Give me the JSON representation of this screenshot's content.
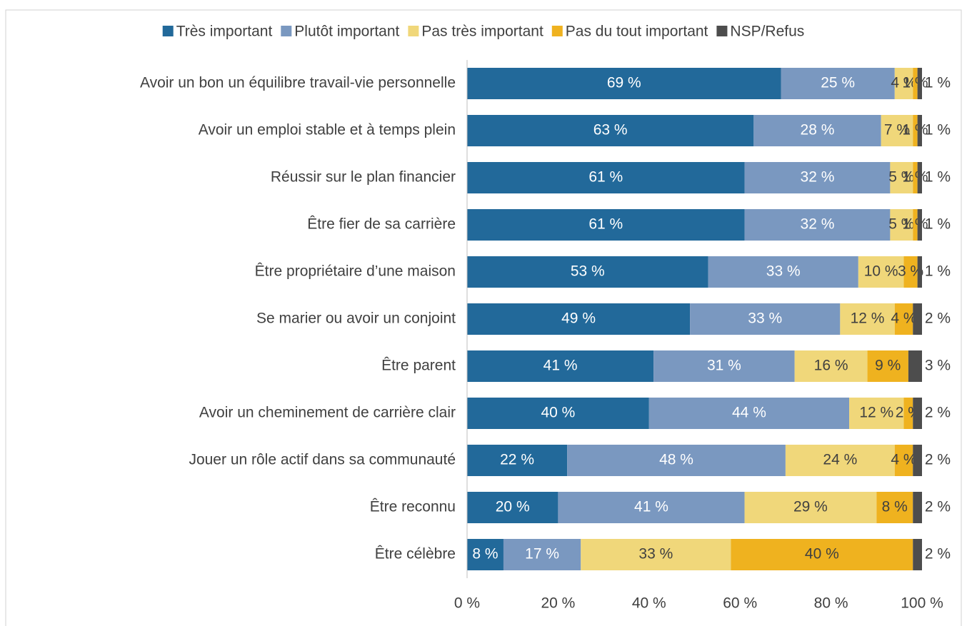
{
  "chart_data": {
    "type": "stacked-bar-horizontal",
    "categories": [
      "Avoir un bon un équilibre travail-vie personnelle",
      "Avoir un emploi stable et à temps plein",
      "Réussir sur le plan financier",
      "Être fier de sa carrière",
      "Être propriétaire d’une maison",
      "Se marier ou avoir un conjoint ",
      "Être parent ",
      "Avoir un cheminement de carrière clair",
      "Jouer un rôle actif dans sa communauté",
      "Être reconnu",
      "Être célèbre"
    ],
    "series": [
      {
        "name": "Très important",
        "color": "#22699a",
        "values": [
          69,
          63,
          61,
          61,
          53,
          49,
          41,
          40,
          22,
          20,
          8
        ],
        "value_labels": [
          "69 %",
          "63 %",
          "61 %",
          "61 %",
          "53 %",
          "49 %",
          "41 %",
          "40 %",
          "22 %",
          "20 %",
          "8 %"
        ]
      },
      {
        "name": "Plutôt important",
        "color": "#7a98c0",
        "values": [
          25,
          28,
          32,
          32,
          33,
          33,
          31,
          44,
          48,
          41,
          17
        ],
        "value_labels": [
          "25 %",
          "28 %",
          "32 %",
          "32 %",
          "33 %",
          "33 %",
          "31 %",
          "44 %",
          "48 %",
          "41 %",
          "17 %"
        ]
      },
      {
        "name": "Pas très important",
        "color": "#f0d77a",
        "values": [
          4,
          7,
          5,
          5,
          10,
          12,
          16,
          12,
          24,
          29,
          33
        ],
        "value_labels": [
          "4 %",
          "7 %",
          "5 %",
          "5 %",
          "10 %",
          "12 %",
          "16 %",
          "12 %",
          "24 %",
          "29 %",
          "33 %"
        ]
      },
      {
        "name": "Pas du tout important",
        "color": "#efb21f",
        "values": [
          1,
          1,
          1,
          1,
          3,
          4,
          9,
          2,
          4,
          8,
          40
        ],
        "value_labels": [
          "1 %",
          "1 %",
          "1 %",
          "1 %",
          "3 %",
          "4 %",
          "9 %",
          "2 %",
          "4 %",
          "8 %",
          "40 %"
        ]
      },
      {
        "name": "NSP/Refus",
        "color": "#4d4d4d",
        "values": [
          1,
          1,
          1,
          1,
          1,
          2,
          3,
          2,
          2,
          2,
          2
        ],
        "value_labels": [
          "1 %",
          "1 %",
          "1 %",
          "1 %",
          "1 %",
          "2 %",
          "3 %",
          "2 %",
          "2 %",
          "2 %",
          "2 %"
        ]
      }
    ],
    "xlim": [
      0,
      100
    ],
    "xticks": [
      {
        "value": 0,
        "label": "0 %"
      },
      {
        "value": 20,
        "label": "20 %"
      },
      {
        "value": 40,
        "label": "40 %"
      },
      {
        "value": 60,
        "label": "60 %"
      },
      {
        "value": 80,
        "label": "80 %"
      },
      {
        "value": 100,
        "label": "100 %"
      }
    ],
    "legend": "top"
  }
}
